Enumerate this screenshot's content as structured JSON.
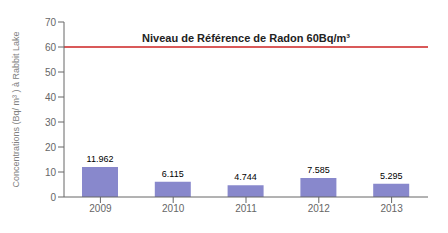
{
  "chart_data": {
    "type": "bar",
    "categories": [
      "2009",
      "2010",
      "2011",
      "2012",
      "2013"
    ],
    "values": [
      11.962,
      6.115,
      4.744,
      7.585,
      5.295
    ],
    "color": "#8888cc",
    "ylabel": "Concentrations (Bq/ m³ ) à Rabbit Lake",
    "ylim": [
      0,
      70
    ],
    "yticks": [
      0,
      10,
      20,
      30,
      40,
      50,
      60,
      70
    ],
    "grid": false,
    "data_labels": true,
    "annotations": [
      {
        "text": "Niveau de Référence de Radon 60Bq/m³",
        "y": 60,
        "color": "#cc2222"
      }
    ]
  }
}
